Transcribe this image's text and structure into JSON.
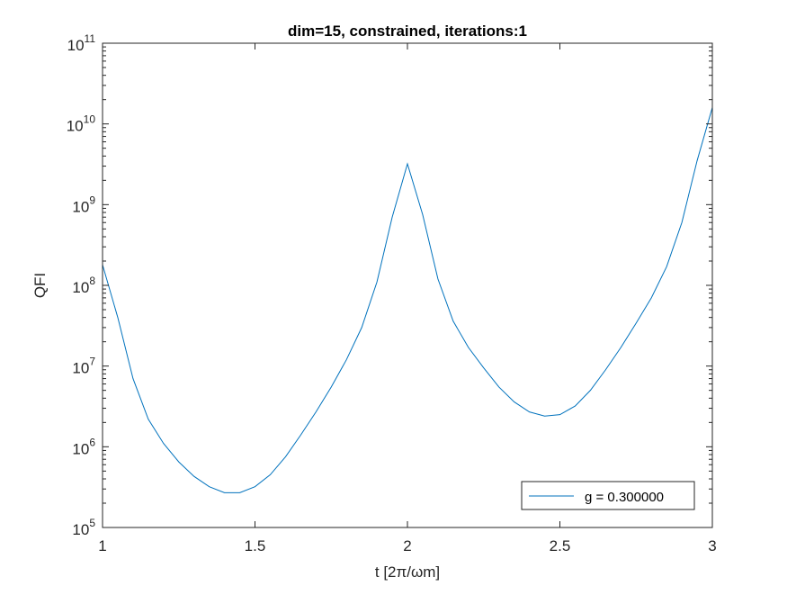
{
  "chart_data": {
    "type": "line",
    "title": "dim=15, constrained, iterations:1",
    "xlabel": "t [2π/ωm]",
    "ylabel": "QFI",
    "xlim": [
      1,
      3
    ],
    "ylim": [
      100000,
      100000000000
    ],
    "yscale": "log",
    "grid": false,
    "legend_position": "bottom-right",
    "x_ticks": [
      1,
      1.5,
      2,
      2.5,
      3
    ],
    "x_tick_labels": [
      "1",
      "1.5",
      "2",
      "2.5",
      "3"
    ],
    "y_ticks": [
      {
        "value": 100000,
        "base": "10",
        "exp": "5"
      },
      {
        "value": 1000000,
        "base": "10",
        "exp": "6"
      },
      {
        "value": 10000000,
        "base": "10",
        "exp": "7"
      },
      {
        "value": 100000000,
        "base": "10",
        "exp": "8"
      },
      {
        "value": 1000000000,
        "base": "10",
        "exp": "9"
      },
      {
        "value": 10000000000,
        "base": "10",
        "exp": "10"
      },
      {
        "value": 100000000000,
        "base": "10",
        "exp": "11"
      }
    ],
    "series": [
      {
        "name": "g = 0.300000",
        "color": "#0072bd",
        "x": [
          1.0,
          1.05,
          1.1,
          1.15,
          1.2,
          1.25,
          1.3,
          1.35,
          1.4,
          1.45,
          1.5,
          1.55,
          1.6,
          1.65,
          1.7,
          1.75,
          1.8,
          1.85,
          1.9,
          1.95,
          2.0,
          2.05,
          2.1,
          2.15,
          2.2,
          2.25,
          2.3,
          2.35,
          2.4,
          2.45,
          2.5,
          2.55,
          2.6,
          2.65,
          2.7,
          2.75,
          2.8,
          2.85,
          2.9,
          2.95,
          3.0
        ],
        "y": [
          180000000,
          40000000,
          7000000,
          2200000,
          1100000,
          650000,
          430000,
          320000,
          270000,
          270000,
          320000,
          450000,
          750000,
          1400000,
          2700000,
          5500000,
          12000000,
          30000000,
          110000000,
          700000000,
          3200000000,
          750000000,
          120000000,
          36000000,
          17000000,
          9500000,
          5500000,
          3600000,
          2700000,
          2400000,
          2500000,
          3200000,
          5000000,
          9000000,
          17000000,
          34000000,
          70000000,
          170000000,
          600000000,
          3500000000,
          16000000000
        ]
      }
    ]
  }
}
